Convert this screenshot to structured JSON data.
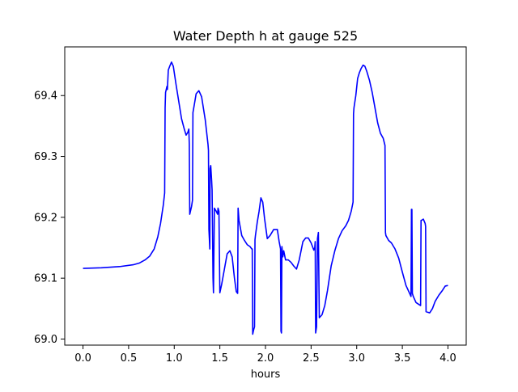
{
  "chart_data": {
    "type": "line",
    "title": "Water Depth h at gauge 525",
    "xlabel": "hours",
    "ylabel": "",
    "xlim": [
      -0.2,
      4.2
    ],
    "ylim": [
      68.99,
      69.48
    ],
    "xticks": [
      0.0,
      0.5,
      1.0,
      1.5,
      2.0,
      2.5,
      3.0,
      3.5,
      4.0
    ],
    "xtick_labels": [
      "0.0",
      "0.5",
      "1.0",
      "1.5",
      "2.0",
      "2.5",
      "3.0",
      "3.5",
      "4.0"
    ],
    "yticks": [
      69.0,
      69.1,
      69.2,
      69.3,
      69.4
    ],
    "ytick_labels": [
      "69.0",
      "69.1",
      "69.2",
      "69.3",
      "69.4"
    ],
    "grid": false,
    "legend": false,
    "series": [
      {
        "color": "#0000ff",
        "x": [
          0.0,
          0.2,
          0.4,
          0.55,
          0.62,
          0.68,
          0.73,
          0.78,
          0.82,
          0.85,
          0.88,
          0.895,
          0.9,
          0.905,
          0.92,
          0.925,
          0.935,
          0.95,
          0.97,
          0.99,
          1.02,
          1.05,
          1.08,
          1.11,
          1.13,
          1.15,
          1.16,
          1.165,
          1.17,
          1.19,
          1.2,
          1.205,
          1.22,
          1.24,
          1.27,
          1.3,
          1.34,
          1.37,
          1.375,
          1.38,
          1.385,
          1.39,
          1.393,
          1.4,
          1.41,
          1.415,
          1.425,
          1.43,
          1.44,
          1.46,
          1.475,
          1.48,
          1.49,
          1.5,
          1.52,
          1.55,
          1.58,
          1.61,
          1.635,
          1.66,
          1.68,
          1.695,
          1.7,
          1.71,
          1.74,
          1.77,
          1.8,
          1.83,
          1.85,
          1.855,
          1.86,
          1.87,
          1.88,
          1.885,
          1.89,
          1.91,
          1.93,
          1.95,
          1.97,
          1.99,
          2.02,
          2.05,
          2.09,
          2.13,
          2.15,
          2.165,
          2.17,
          2.175,
          2.18,
          2.19,
          2.2,
          2.22,
          2.25,
          2.28,
          2.31,
          2.34,
          2.37,
          2.41,
          2.44,
          2.47,
          2.5,
          2.53,
          2.54,
          2.545,
          2.55,
          2.56,
          2.57,
          2.575,
          2.58,
          2.59,
          2.62,
          2.65,
          2.68,
          2.72,
          2.76,
          2.8,
          2.84,
          2.88,
          2.91,
          2.94,
          2.96,
          2.965,
          2.97,
          2.99,
          3.01,
          3.03,
          3.05,
          3.07,
          3.09,
          3.11,
          3.14,
          3.17,
          3.2,
          3.23,
          3.26,
          3.29,
          3.31,
          3.315,
          3.32,
          3.35,
          3.38,
          3.42,
          3.46,
          3.5,
          3.54,
          3.58,
          3.595,
          3.6,
          3.605,
          3.61,
          3.62,
          3.65,
          3.68,
          3.7,
          3.705,
          3.71,
          3.73,
          3.75,
          3.755,
          3.76,
          3.78,
          3.8,
          3.83,
          3.86,
          3.9,
          3.94,
          3.97,
          4.0
        ],
        "y": [
          69.116,
          69.117,
          69.119,
          69.122,
          69.125,
          69.13,
          69.136,
          69.148,
          69.168,
          69.19,
          69.22,
          69.24,
          69.38,
          69.405,
          69.415,
          69.41,
          69.442,
          69.448,
          69.455,
          69.448,
          69.418,
          69.39,
          69.362,
          69.345,
          69.335,
          69.34,
          69.345,
          69.32,
          69.205,
          69.218,
          69.228,
          69.372,
          69.385,
          69.403,
          69.408,
          69.398,
          69.36,
          69.32,
          69.31,
          69.18,
          69.165,
          69.148,
          69.28,
          69.285,
          69.26,
          69.245,
          69.1,
          69.076,
          69.215,
          69.21,
          69.205,
          69.215,
          69.21,
          69.076,
          69.09,
          69.115,
          69.14,
          69.145,
          69.135,
          69.1,
          69.078,
          69.075,
          69.215,
          69.195,
          69.17,
          69.162,
          69.155,
          69.152,
          69.148,
          69.148,
          69.008,
          69.015,
          69.02,
          69.163,
          69.17,
          69.192,
          69.21,
          69.232,
          69.225,
          69.198,
          69.165,
          69.17,
          69.18,
          69.18,
          69.16,
          69.148,
          69.013,
          69.01,
          69.152,
          69.135,
          69.145,
          69.13,
          69.13,
          69.126,
          69.12,
          69.115,
          69.13,
          69.16,
          69.166,
          69.166,
          69.158,
          69.146,
          69.15,
          69.16,
          69.01,
          69.02,
          69.165,
          69.17,
          69.175,
          69.035,
          69.04,
          69.055,
          69.08,
          69.12,
          69.145,
          69.165,
          69.178,
          69.186,
          69.195,
          69.21,
          69.225,
          69.37,
          69.38,
          69.4,
          69.428,
          69.438,
          69.445,
          69.45,
          69.448,
          69.44,
          69.425,
          69.405,
          69.38,
          69.355,
          69.338,
          69.33,
          69.318,
          69.175,
          69.17,
          69.162,
          69.158,
          69.148,
          69.133,
          69.11,
          69.088,
          69.075,
          69.07,
          69.213,
          69.213,
          69.075,
          69.07,
          69.06,
          69.057,
          69.055,
          69.195,
          69.195,
          69.197,
          69.19,
          69.185,
          69.045,
          69.044,
          69.043,
          69.05,
          69.062,
          69.072,
          69.08,
          69.087,
          69.088
        ]
      }
    ]
  }
}
